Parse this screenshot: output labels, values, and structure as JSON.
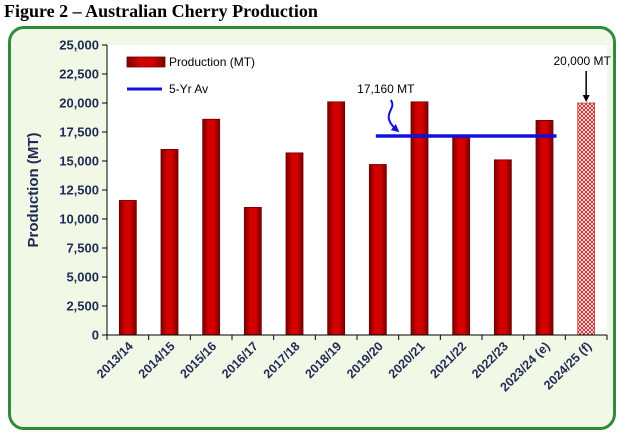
{
  "figure_title": "Figure 2 – Australian Cherry Production",
  "colors": {
    "bar_fill": "#c00000",
    "bar_edge": "#6b0000",
    "forecast_fill": "#c93a3a",
    "avg_line": "#1010dd",
    "frame_border": "#2f8a3a",
    "frame_bg": "#f2f8e6",
    "tick_text": "#1f2a55"
  },
  "chart_data": {
    "type": "bar",
    "title": "Australian Cherry Production",
    "xlabel": "",
    "ylabel": "Production (MT)",
    "ylim": [
      0,
      25000
    ],
    "yticks": [
      0,
      2500,
      5000,
      7500,
      10000,
      12500,
      15000,
      17500,
      20000,
      22500,
      25000
    ],
    "ytick_labels": [
      "0",
      "2,500",
      "5,000",
      "7,500",
      "10,000",
      "12,500",
      "15,000",
      "17,500",
      "20,000",
      "22,500",
      "25,000"
    ],
    "grid": false,
    "categories": [
      "2013/14",
      "2014/15",
      "2015/16",
      "2016/17",
      "2017/18",
      "2018/19",
      "2019/20",
      "2020/21",
      "2021/22",
      "2022/23",
      "2023/24 (e)",
      "2024/25 (f)"
    ],
    "series": [
      {
        "name": "Production (MT)",
        "values": [
          11600,
          16000,
          18600,
          11000,
          15700,
          20100,
          14700,
          20100,
          17200,
          15100,
          18500,
          20000
        ],
        "forecast_index": 11
      }
    ],
    "reference_lines": [
      {
        "name": "5-Yr Av",
        "value": 17160,
        "from_category": "2019/20",
        "to_category": "2023/24 (e)"
      }
    ],
    "annotations": [
      {
        "text": "17,160 MT",
        "target": "5-Yr Av"
      },
      {
        "text": "20,000 MT",
        "target": "2024/25 (f)"
      }
    ],
    "legend": {
      "position": "top-left",
      "entries": [
        "Production (MT)",
        "5-Yr Av"
      ]
    }
  }
}
